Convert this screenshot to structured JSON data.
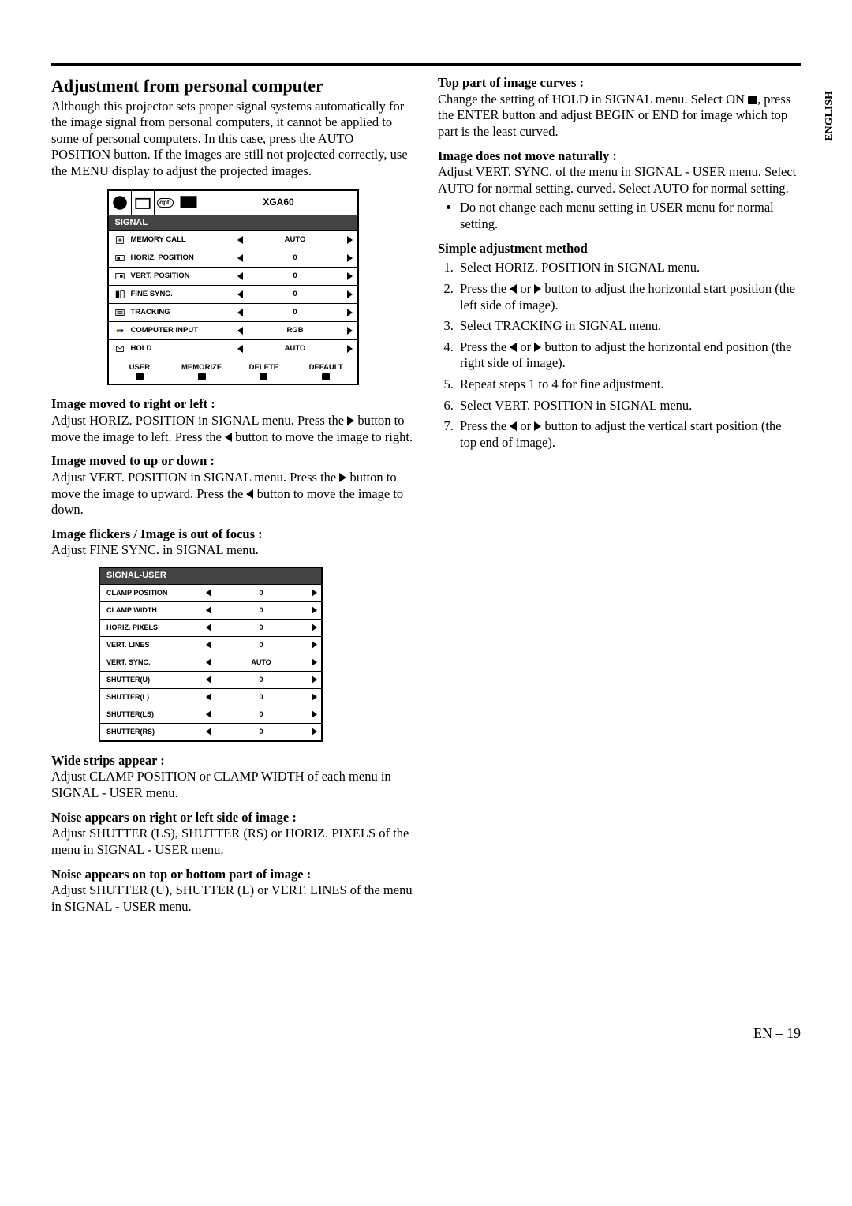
{
  "side_label": "ENGLISH",
  "page_number": "EN – 19",
  "left_col": {
    "heading": "Adjustment from personal computer",
    "intro": "Although this projector sets proper signal systems automatically for the image signal from personal computers, it cannot be applied to some of personal computers.  In this case, press the AUTO POSITION button.  If the images are still not projected correctly, use the MENU display to adjust the projected images.",
    "signal_menu": {
      "mode": "XGA60",
      "opt_label": "opt.",
      "title": "SIGNAL",
      "rows": [
        {
          "label": "MEMORY CALL",
          "value": "AUTO"
        },
        {
          "label": "HORIZ. POSITION",
          "value": "0"
        },
        {
          "label": "VERT. POSITION",
          "value": "0"
        },
        {
          "label": "FINE SYNC.",
          "value": "0"
        },
        {
          "label": "TRACKING",
          "value": "0"
        },
        {
          "label": "COMPUTER INPUT",
          "value": "RGB"
        },
        {
          "label": "HOLD",
          "value": "AUTO"
        }
      ],
      "foot": [
        "USER",
        "MEMORIZE",
        "DELETE",
        "DEFAULT"
      ]
    },
    "p1_title": "Image moved to right or left :",
    "p1_body_a": "Adjust HORIZ. POSITION in SIGNAL menu.  Press the ",
    "p1_body_b": " button to move the image to left.  Press the ",
    "p1_body_c": " button to move the image to right.",
    "p2_title": "Image moved to up or down :",
    "p2_body_a": "Adjust VERT. POSITION in SIGNAL menu.  Press the ",
    "p2_body_b": " button to move the image to upward.  Press the ",
    "p2_body_c": " button to move the image to down.",
    "p3_title": "Image flickers / Image is out of focus :",
    "p3_body": "Adjust FINE SYNC. in SIGNAL menu.",
    "signal_user": {
      "title": "SIGNAL-USER",
      "rows": [
        {
          "label": "CLAMP POSITION",
          "value": "0"
        },
        {
          "label": "CLAMP WIDTH",
          "value": "0"
        },
        {
          "label": "HORIZ. PIXELS",
          "value": "0"
        },
        {
          "label": "VERT. LINES",
          "value": "0"
        },
        {
          "label": "VERT. SYNC.",
          "value": "AUTO"
        },
        {
          "label": "SHUTTER(U)",
          "value": "0"
        },
        {
          "label": "SHUTTER(L)",
          "value": "0"
        },
        {
          "label": "SHUTTER(LS)",
          "value": "0"
        },
        {
          "label": "SHUTTER(RS)",
          "value": "0"
        }
      ]
    },
    "p4_title": "Wide strips appear :",
    "p4_body": "Adjust CLAMP POSITION or CLAMP WIDTH of each menu in SIGNAL - USER menu.",
    "p5_title": "Noise appears on right or left side of image :",
    "p5_body": "Adjust SHUTTER (LS), SHUTTER (RS) or HORIZ. PIXELS  of the menu in SIGNAL - USER menu.",
    "p6_title": "Noise appears on top or bottom part of image :",
    "p6_body": "Adjust SHUTTER (U), SHUTTER (L) or VERT. LINES of the menu in SIGNAL - USER menu."
  },
  "right_col": {
    "r1_title": "Top part of image curves :",
    "r1_body_a": "Change the setting of HOLD in SIGNAL menu. Select ON ",
    "r1_body_b": ", press the ENTER button and adjust BEGIN or END for image which top part is the least curved.",
    "r2_title": "Image does not move naturally :",
    "r2_body": "Adjust VERT. SYNC. of the menu in SIGNAL - USER menu.  Select AUTO for normal setting. curved.  Select AUTO for normal setting.",
    "bullet": "Do not change each menu setting in USER menu for normal setting.",
    "r3_title": "Simple adjustment method",
    "step1": "Select HORIZ. POSITION in SIGNAL menu.",
    "step2_a": "Press the ",
    "step2_b": " or ",
    "step2_c": " button to adjust the horizontal start position (the left side of image).",
    "step3": "Select TRACKING in SIGNAL menu.",
    "step4_a": "Press the ",
    "step4_b": " or ",
    "step4_c": " button to adjust the horizontal end position (the right side of image).",
    "step5": "Repeat steps 1 to 4 for fine adjustment.",
    "step6": "Select VERT. POSITION in SIGNAL menu.",
    "step7_a": "Press the ",
    "step7_b": " or ",
    "step7_c": " button to adjust the vertical start position (the top end of image)."
  }
}
